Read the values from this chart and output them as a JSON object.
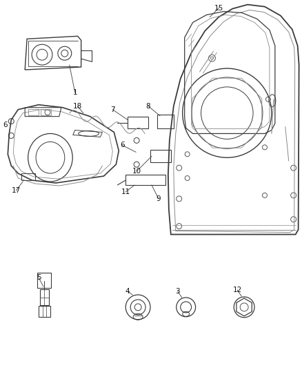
{
  "bg_color": "#ffffff",
  "line_color": "#3a3a3a",
  "light_line": "#888888",
  "gray_fill": "#e8e8e8",
  "fig_width": 4.38,
  "fig_height": 5.33,
  "dpi": 100
}
